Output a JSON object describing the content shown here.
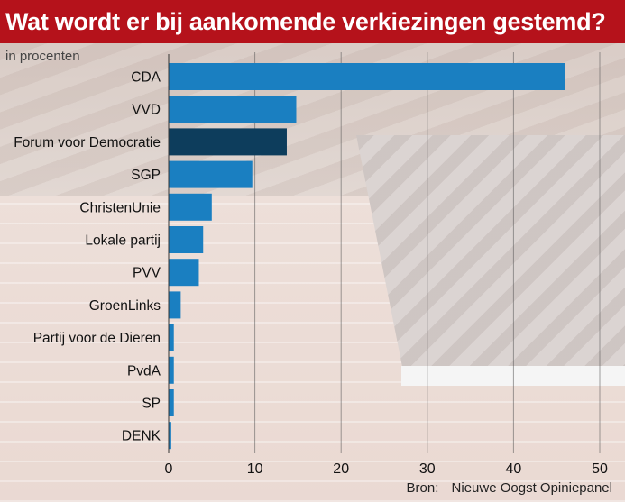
{
  "title": "Wat wordt er bij aankomende verkiezingen gestemd?",
  "subtitle": "in procenten",
  "source": {
    "label": "Bron:",
    "text": "Nieuwe Oogst Opiniepanel"
  },
  "colors": {
    "bar": "#1a7fc1",
    "highlight": "#0d3d5c",
    "title_bg": "#b5121b"
  },
  "chart_data": {
    "type": "bar",
    "orientation": "horizontal",
    "title": "Wat wordt er bij aankomende verkiezingen gestemd?",
    "xlabel": "in procenten",
    "ylabel": "",
    "categories": [
      "CDA",
      "VVD",
      "Forum voor Democratie",
      "SGP",
      "ChristenUnie",
      "Lokale partij",
      "PVV",
      "GroenLinks",
      "Partij voor de Dieren",
      "PvdA",
      "SP",
      "DENK"
    ],
    "values": [
      46.0,
      14.8,
      13.7,
      9.7,
      5.0,
      4.0,
      3.5,
      1.4,
      0.6,
      0.6,
      0.6,
      0.3
    ],
    "highlight": "Forum voor Democratie",
    "xlim": [
      0,
      50
    ],
    "xticks": [
      0,
      10,
      20,
      30,
      40,
      50
    ],
    "grid": true
  }
}
